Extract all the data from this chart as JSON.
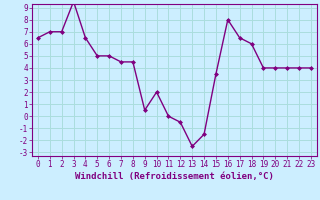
{
  "x": [
    0,
    1,
    2,
    3,
    4,
    5,
    6,
    7,
    8,
    9,
    10,
    11,
    12,
    13,
    14,
    15,
    16,
    17,
    18,
    19,
    20,
    21,
    22,
    23
  ],
  "y": [
    6.5,
    7.0,
    7.0,
    9.5,
    6.5,
    5.0,
    5.0,
    4.5,
    4.5,
    0.5,
    2.0,
    0.0,
    -0.5,
    -2.5,
    -1.5,
    3.5,
    8.0,
    6.5,
    6.0,
    4.0,
    4.0,
    4.0,
    4.0,
    4.0
  ],
  "line_color": "#800080",
  "marker": "D",
  "marker_size": 2.0,
  "xlabel": "Windchill (Refroidissement éolien,°C)",
  "xlabel_fontsize": 6.5,
  "ylim": [
    -3,
    9
  ],
  "xlim": [
    -0.5,
    23.5
  ],
  "yticks": [
    -3,
    -2,
    -1,
    0,
    1,
    2,
    3,
    4,
    5,
    6,
    7,
    8,
    9
  ],
  "xticks": [
    0,
    1,
    2,
    3,
    4,
    5,
    6,
    7,
    8,
    9,
    10,
    11,
    12,
    13,
    14,
    15,
    16,
    17,
    18,
    19,
    20,
    21,
    22,
    23
  ],
  "bg_color": "#cceeff",
  "grid_color": "#aadddd",
  "tick_color": "#800080",
  "tick_fontsize": 5.5,
  "line_width": 1.0
}
